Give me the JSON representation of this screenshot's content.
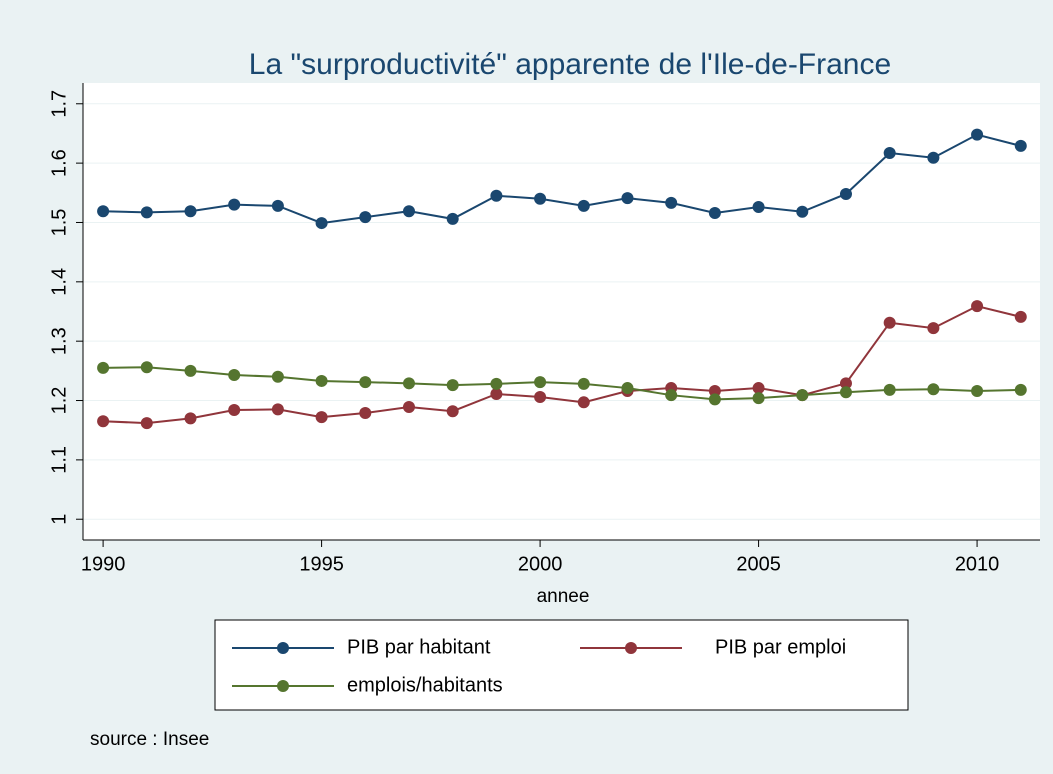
{
  "chart_data": {
    "type": "line",
    "title": "La \"surproductivité\" apparente de l'Ile-de-France",
    "x_label": "annee",
    "note": "source : Insee",
    "x": [
      1990,
      1991,
      1992,
      1993,
      1994,
      1995,
      1996,
      1997,
      1998,
      1999,
      2000,
      2001,
      2002,
      2003,
      2004,
      2005,
      2006,
      2007,
      2008,
      2009,
      2010,
      2011
    ],
    "series": [
      {
        "name": "PIB par habitant",
        "color": "#1a476f",
        "values": [
          1.519,
          1.517,
          1.519,
          1.53,
          1.528,
          1.499,
          1.509,
          1.519,
          1.506,
          1.545,
          1.54,
          1.528,
          1.541,
          1.533,
          1.516,
          1.526,
          1.518,
          1.548,
          1.617,
          1.609,
          1.648,
          1.629
        ]
      },
      {
        "name": "PIB par emploi",
        "color": "#90353b",
        "values": [
          1.165,
          1.162,
          1.17,
          1.184,
          1.185,
          1.172,
          1.179,
          1.189,
          1.182,
          1.211,
          1.206,
          1.197,
          1.216,
          1.221,
          1.216,
          1.221,
          1.209,
          1.229,
          1.331,
          1.322,
          1.359,
          1.341
        ]
      },
      {
        "name": "emplois/habitants",
        "color": "#55752f",
        "values": [
          1.255,
          1.256,
          1.25,
          1.243,
          1.24,
          1.233,
          1.231,
          1.229,
          1.226,
          1.228,
          1.231,
          1.228,
          1.221,
          1.209,
          1.202,
          1.204,
          1.209,
          1.214,
          1.218,
          1.219,
          1.216,
          1.218
        ]
      }
    ],
    "xlim": [
      1989.54,
      2011.44
    ],
    "xticks": [
      1990,
      1995,
      2000,
      2005,
      2010
    ],
    "ylim": [
      0.965,
      1.735
    ],
    "yticks": [
      1,
      1.1,
      1.2,
      1.3,
      1.4,
      1.5,
      1.6,
      1.7
    ],
    "grid": true
  }
}
